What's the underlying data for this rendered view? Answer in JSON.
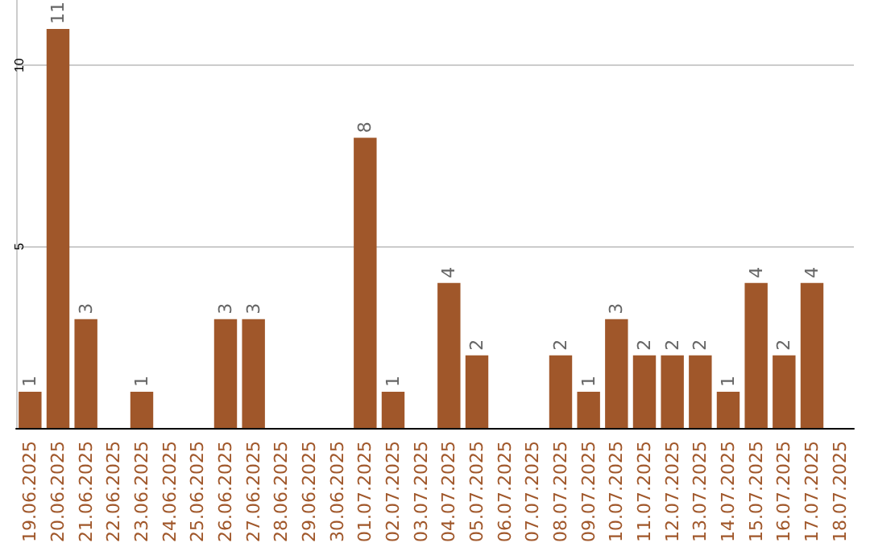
{
  "chart_data": {
    "type": "bar",
    "categories": [
      "19.06.2025",
      "20.06.2025",
      "21.06.2025",
      "22.06.2025",
      "23.06.2025",
      "24.06.2025",
      "25.06.2025",
      "26.06.2025",
      "27.06.2025",
      "28.06.2025",
      "29.06.2025",
      "30.06.2025",
      "01.07.2025",
      "02.07.2025",
      "03.07.2025",
      "04.07.2025",
      "05.07.2025",
      "06.07.2025",
      "07.07.2025",
      "08.07.2025",
      "09.07.2025",
      "10.07.2025",
      "11.07.2025",
      "12.07.2025",
      "13.07.2025",
      "14.07.2025",
      "15.07.2025",
      "16.07.2025",
      "17.07.2025",
      "18.07.2025"
    ],
    "values": [
      1,
      11,
      3,
      null,
      1,
      null,
      null,
      3,
      3,
      null,
      null,
      null,
      8,
      1,
      null,
      4,
      2,
      null,
      null,
      2,
      1,
      3,
      2,
      2,
      2,
      1,
      4,
      2,
      4,
      null
    ],
    "color": "#a0572a",
    "ylim": [
      0,
      11.8
    ],
    "yticks": [
      5,
      10
    ],
    "grid": "y",
    "data_labels": true
  }
}
